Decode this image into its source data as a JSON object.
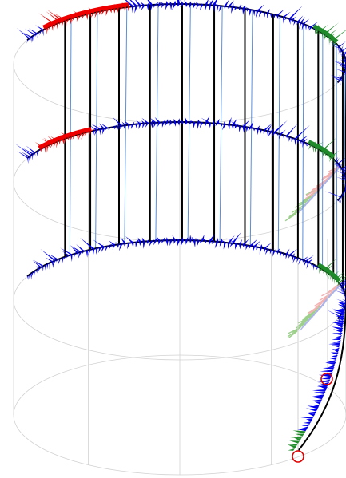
{
  "figure": {
    "kind": "3d-cylindrical-shell-wireframe",
    "rings_with_force_glyphs": 3,
    "vertical_members": 13,
    "colors": {
      "background": "#ffffff",
      "grid": "#d2d2d2",
      "members": "#000000",
      "thin_links": "#5a8fd8",
      "glyph_blue": "#0000ee",
      "glyph_red": "#ee0000",
      "glyph_green": "#1f8a2a",
      "glyph_ghost_green": "#9ccf8a",
      "glyph_ghost_blue": "#aab4e8",
      "glyph_ghost_red": "#f2b2b2",
      "support_marker": "#e00000"
    },
    "support_markers": 2
  }
}
